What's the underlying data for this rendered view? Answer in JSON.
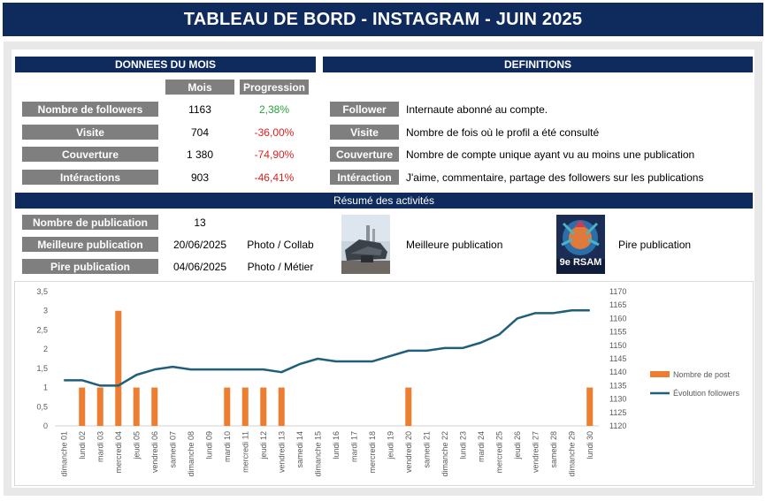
{
  "title": "TABLEAU DE BORD - INSTAGRAM - JUIN 2025",
  "donnees": {
    "header": "DONNEES DU MOIS",
    "col_mois": "Mois",
    "col_progression": "Progression",
    "rows": [
      {
        "label": "Nombre de followers",
        "mois": "1163",
        "progression": "2,38%"
      },
      {
        "label": "Visite",
        "mois": "704",
        "progression": "-36,00%"
      },
      {
        "label": "Couverture",
        "mois": "1 380",
        "progression": "-74,90%"
      },
      {
        "label": "Intéractions",
        "mois": "903",
        "progression": "-46,41%"
      }
    ]
  },
  "definitions": {
    "header": "DEFINITIONS",
    "rows": [
      {
        "term": "Follower",
        "text": "Internaute abonné au compte."
      },
      {
        "term": "Visite",
        "text": "Nombre de fois où le profil a été consulté"
      },
      {
        "term": "Couverture",
        "text": "Nombre de compte unique ayant vu au moins une publication"
      },
      {
        "term": "Intéraction",
        "text": "J'aime, commentaire, partage des followers sur les publications"
      }
    ]
  },
  "resume": {
    "header": "Résumé des activités",
    "nb_label": "Nombre de publication",
    "nb_value": "13",
    "best_label": "Meilleure publication",
    "best_date": "20/06/2025",
    "best_type": "Photo / Collab",
    "worst_label": "Pire publication",
    "worst_date": "04/06/2025",
    "worst_type": "Photo / Métier",
    "best_caption": "Meilleure publication",
    "worst_caption": "Pire publication",
    "worst_image_text": "9e RSAM"
  },
  "colors": {
    "navy": "#0f2a5c",
    "grey": "#7f7f7f",
    "bar": "#ed7d31",
    "line": "#1f5f7a",
    "positive": "#2aa23a",
    "negative": "#e02020"
  },
  "chart_data": {
    "type": "bar",
    "categories": [
      "dimanche 01",
      "lundi 02",
      "mardi 03",
      "mercredi 04",
      "jeudi 05",
      "vendredi 06",
      "samedi 07",
      "dimanche 08",
      "lundi 09",
      "mardi 10",
      "mercredi 11",
      "jeudi 12",
      "vendredi 13",
      "samedi 14",
      "dimanche 15",
      "lundi 16",
      "mardi 17",
      "mercredi 18",
      "jeudi 19",
      "vendredi 20",
      "samedi 21",
      "dimanche 22",
      "lundi 23",
      "mardi 24",
      "mercredi 25",
      "jeudi 26",
      "vendredi 27",
      "samedi 28",
      "dimanche 29",
      "lundi 30"
    ],
    "series": [
      {
        "name": "Nombre de post",
        "kind": "bar",
        "axis": "left",
        "values": [
          0,
          1,
          1,
          3,
          1,
          1,
          0,
          0,
          0,
          1,
          1,
          1,
          1,
          0,
          0,
          0,
          0,
          0,
          0,
          1,
          0,
          0,
          0,
          0,
          0,
          0,
          0,
          0,
          0,
          1
        ]
      },
      {
        "name": "Évolution followers",
        "kind": "line",
        "axis": "right",
        "values": [
          1137,
          1137,
          1135,
          1135,
          1139,
          1141,
          1142,
          1141,
          1141,
          1141,
          1141,
          1141,
          1140,
          1143,
          1145,
          1144,
          1144,
          1144,
          1146,
          1148,
          1148,
          1149,
          1149,
          1151,
          1154,
          1160,
          1162,
          1162,
          1163,
          1163
        ]
      }
    ],
    "ylim_left": [
      0,
      3.5
    ],
    "yticks_left": [
      "0",
      "0,5",
      "1",
      "1,5",
      "2",
      "2,5",
      "3",
      "3,5"
    ],
    "ylim_right": [
      1120,
      1170
    ],
    "yticks_right": [
      "1120",
      "1125",
      "1130",
      "1135",
      "1140",
      "1145",
      "1150",
      "1155",
      "1160",
      "1165",
      "1170"
    ],
    "legend_position": "right",
    "grid": false
  }
}
